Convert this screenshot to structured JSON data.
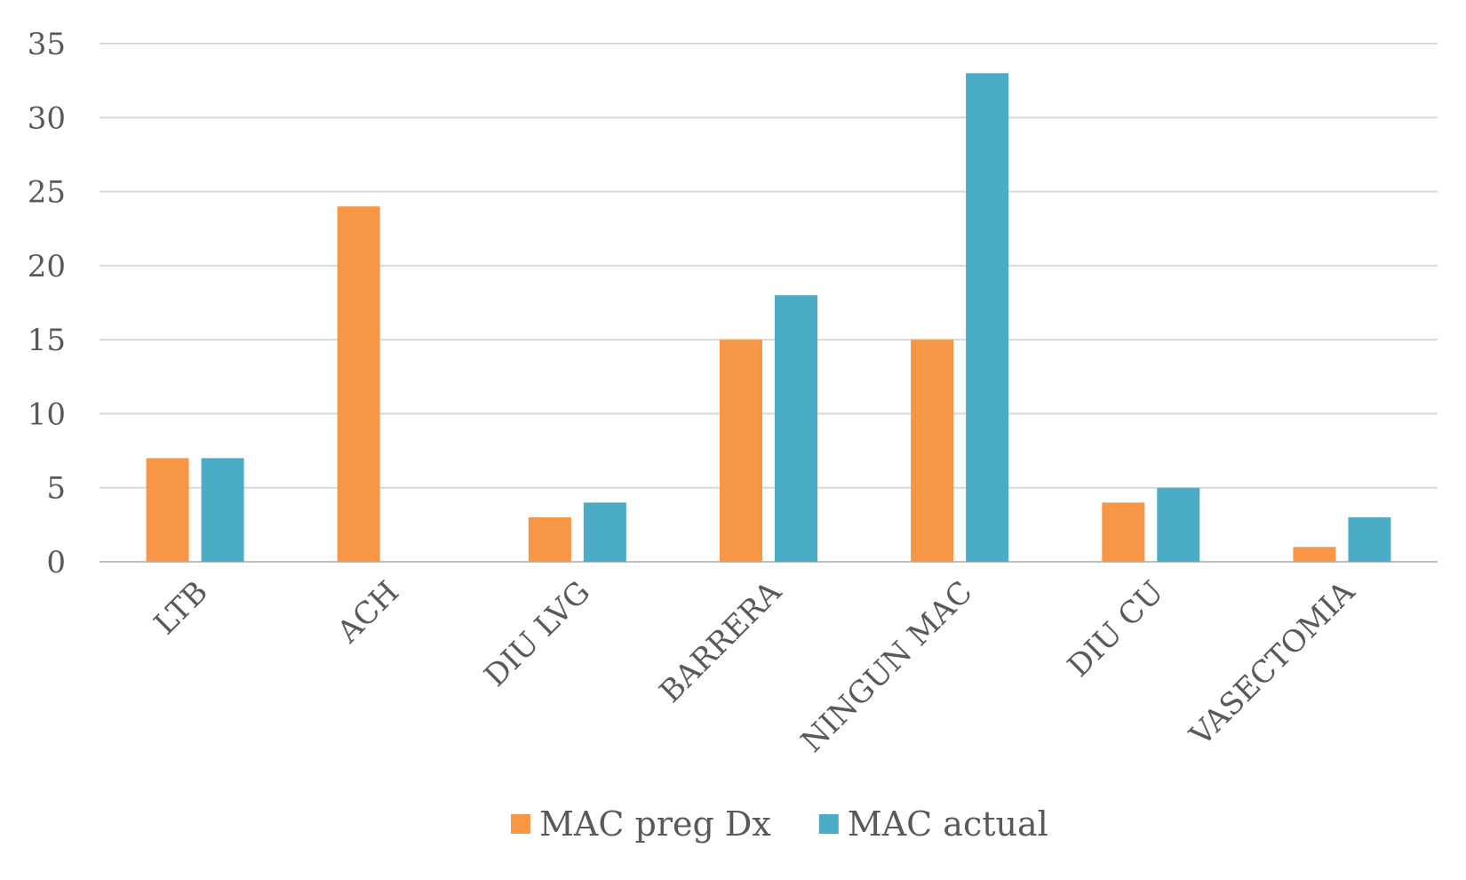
{
  "chart_data": {
    "type": "bar",
    "categories": [
      "LTB",
      "ACH",
      "DIU LVG",
      "BARRERA",
      "NINGUN MAC",
      "DIU CU",
      "VASECTOMIA"
    ],
    "series": [
      {
        "name": "MAC preg Dx",
        "color": "#f79646",
        "values": [
          7,
          24,
          3,
          15,
          15,
          4,
          1
        ]
      },
      {
        "name": "MAC actual",
        "color": "#4bacc6",
        "values": [
          7,
          0,
          4,
          18,
          33,
          5,
          3
        ]
      }
    ],
    "yticks": [
      0,
      5,
      10,
      15,
      20,
      25,
      30,
      35
    ],
    "ylim": [
      0,
      35
    ],
    "grid": true,
    "legend_position": "bottom"
  }
}
